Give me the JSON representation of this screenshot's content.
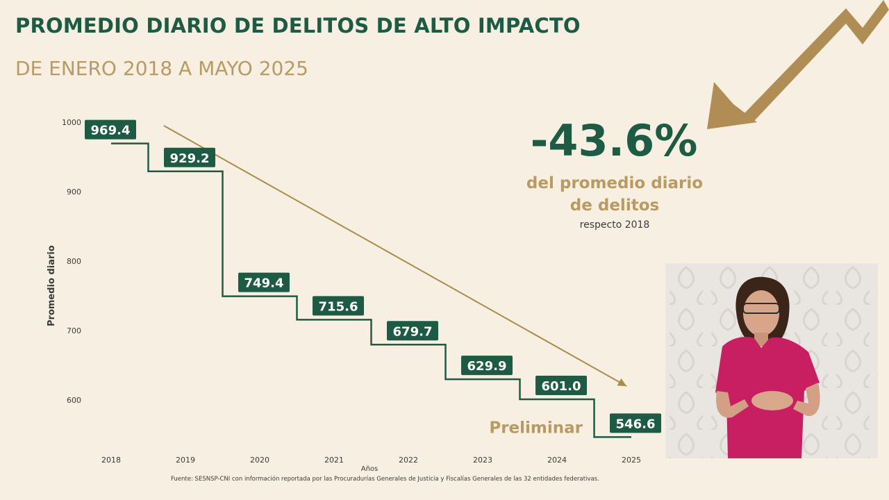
{
  "header": {
    "title": "PROMEDIO DIARIO DE DELITOS DE ALTO IMPACTO",
    "subtitle": "DE ENERO 2018 A MAYO 2025"
  },
  "stat": {
    "value": "-43.6%",
    "description_line1": "del promedio diario",
    "description_line2": "de delitos",
    "note": "respecto 2018"
  },
  "source": "Fuente: SESNSP-CNI con información reportada por las Procuradurías Generales de Justicia y Fiscalías Generales de las 32 entidades federativas.",
  "colors": {
    "green": "#1d5b45",
    "gold": "#b89a62",
    "background": "#f7efe2",
    "interpreter_shirt": "#c81f62"
  },
  "chart_data": {
    "type": "line",
    "step": true,
    "categories": [
      "2018",
      "2019",
      "2020",
      "2021",
      "2022",
      "2023",
      "2024",
      "2025"
    ],
    "values": [
      969.4,
      929.2,
      749.4,
      715.6,
      679.7,
      629.9,
      601.0,
      546.6
    ],
    "value_labels": [
      "969.4",
      "929.2",
      "749.4",
      "715.6",
      "679.7",
      "629.9",
      "601.0",
      "546.6"
    ],
    "xlabel": "Años",
    "ylabel": "Promedio diario",
    "ylim": [
      600,
      1000
    ],
    "yticks": [
      1000,
      900,
      800,
      700,
      600
    ],
    "ytick_labels": [
      "1000",
      "900",
      "800",
      "700",
      "600"
    ],
    "trend_arrow": true,
    "annotation": "Preliminar",
    "annotation_target": "2025",
    "grid": false,
    "legend": "none"
  }
}
